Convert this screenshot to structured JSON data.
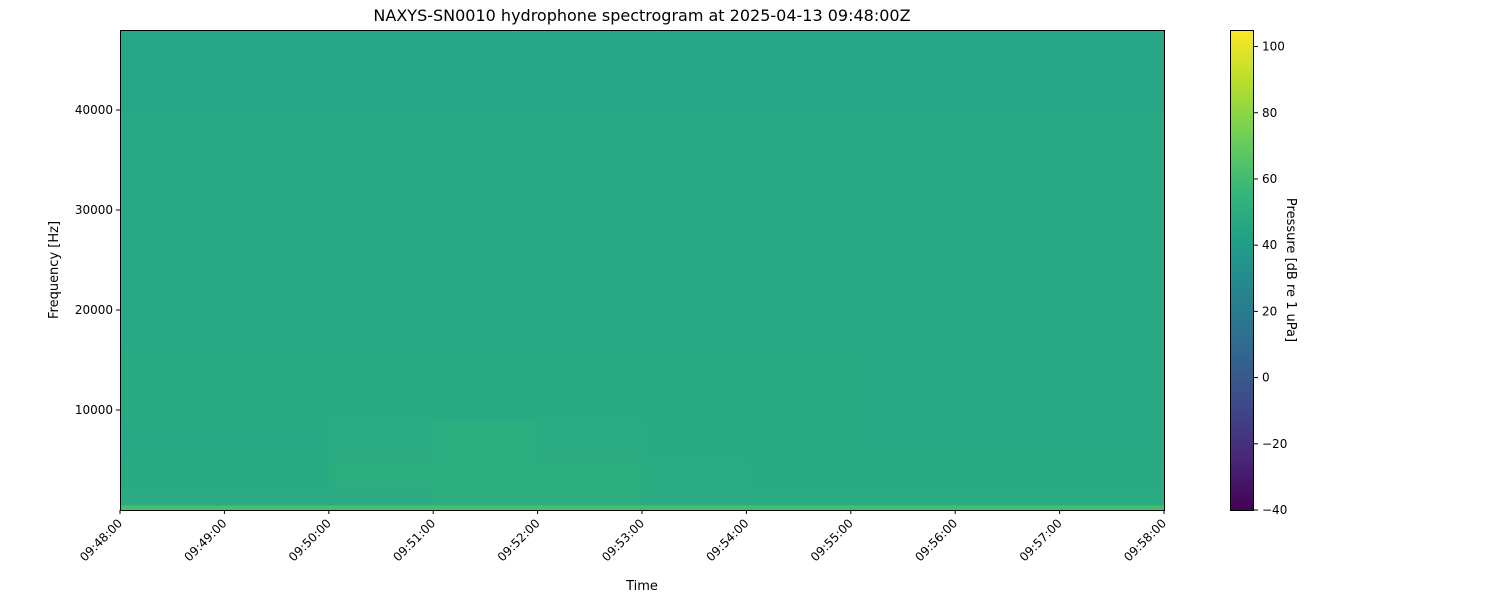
{
  "chart_data": {
    "type": "heatmap",
    "title": "NAXYS-SN0010 hydrophone spectrogram at 2025-04-13 09:48:00Z",
    "xlabel": "Time",
    "ylabel": "Frequency [Hz]",
    "colorbar_label": "Pressure [dB re 1 uPa]",
    "colormap": "viridis",
    "xlim": [
      "09:48:00",
      "09:58:00"
    ],
    "ylim": [
      0,
      48000
    ],
    "clim": [
      -40,
      105
    ],
    "x_ticks": [
      "09:48:00",
      "09:49:00",
      "09:50:00",
      "09:51:00",
      "09:52:00",
      "09:53:00",
      "09:54:00",
      "09:55:00",
      "09:56:00",
      "09:57:00",
      "09:58:00"
    ],
    "y_ticks": [
      10000,
      20000,
      30000,
      40000
    ],
    "colorbar_ticks": [
      -40,
      -20,
      0,
      20,
      40,
      60,
      80,
      100
    ],
    "grid": false,
    "time_bins": [
      "09:48",
      "09:49",
      "09:50",
      "09:51",
      "09:52",
      "09:53",
      "09:54",
      "09:55",
      "09:56",
      "09:57"
    ],
    "frequency_bands_hz": [
      [
        0,
        500
      ],
      [
        500,
        2000
      ],
      [
        2000,
        5000
      ],
      [
        5000,
        9000
      ],
      [
        9000,
        16000
      ],
      [
        16000,
        30000
      ],
      [
        30000,
        40000
      ],
      [
        40000,
        48000
      ]
    ],
    "values_db": [
      [
        62,
        62,
        62,
        62,
        62,
        62,
        61,
        61,
        61,
        61
      ],
      [
        49,
        49,
        49,
        50,
        50,
        49,
        49,
        49,
        49,
        49
      ],
      [
        48,
        48,
        50,
        51,
        50,
        49,
        48,
        48,
        48,
        48
      ],
      [
        47,
        47,
        49,
        50,
        49,
        48,
        48,
        47,
        47,
        47
      ],
      [
        48,
        48,
        48,
        48,
        48,
        48,
        48,
        47,
        47,
        47
      ],
      [
        47,
        47,
        47,
        47,
        47,
        47,
        47,
        47,
        47,
        47
      ],
      [
        47,
        47,
        47,
        47,
        47,
        47,
        47,
        47,
        47,
        47
      ],
      [
        46,
        46,
        46,
        46,
        46,
        46,
        46,
        46,
        46,
        46
      ]
    ]
  }
}
